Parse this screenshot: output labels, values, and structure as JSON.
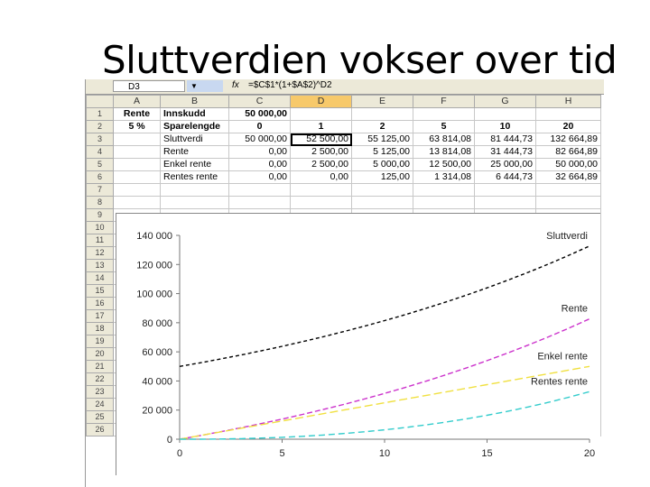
{
  "slide": {
    "title": "Sluttverdien vokser over tid"
  },
  "formula_bar": {
    "cell_ref": "D3",
    "dropdown": "▼",
    "fx": "fx",
    "formula": "=$C$1*(1+$A$2)^D2"
  },
  "columns": [
    "",
    "A",
    "B",
    "C",
    "D",
    "E",
    "F",
    "G",
    "H"
  ],
  "selected_column": "D",
  "rows": [
    {
      "n": "1",
      "cells": [
        "Rente",
        "Innskudd",
        "50 000,00",
        "",
        "",
        "",
        "",
        ""
      ]
    },
    {
      "n": "2",
      "cells": [
        "5 %",
        "Sparelengde",
        "0",
        "1",
        "2",
        "5",
        "10",
        "20"
      ]
    },
    {
      "n": "3",
      "cells": [
        "",
        "Sluttverdi",
        "50 000,00",
        "52 500,00",
        "55 125,00",
        "63 814,08",
        "81 444,73",
        "132 664,89"
      ]
    },
    {
      "n": "4",
      "cells": [
        "",
        "Rente",
        "0,00",
        "2 500,00",
        "5 125,00",
        "13 814,08",
        "31 444,73",
        "82 664,89"
      ]
    },
    {
      "n": "5",
      "cells": [
        "",
        "Enkel rente",
        "0,00",
        "2 500,00",
        "5 000,00",
        "12 500,00",
        "25 000,00",
        "50 000,00"
      ]
    },
    {
      "n": "6",
      "cells": [
        "",
        "Rentes rente",
        "0,00",
        "0,00",
        "125,00",
        "1 314,08",
        "6 444,73",
        "32 664,89"
      ]
    },
    {
      "n": "7",
      "cells": [
        "",
        "",
        "",
        "",
        "",
        "",
        "",
        ""
      ]
    },
    {
      "n": "8",
      "cells": [
        "",
        "",
        "",
        "",
        "",
        "",
        "",
        ""
      ]
    }
  ],
  "extra_row_numbers": [
    "9",
    "10",
    "11",
    "12",
    "13",
    "14",
    "15",
    "16",
    "17",
    "18",
    "19",
    "20",
    "21",
    "22",
    "23",
    "24",
    "25",
    "26"
  ],
  "chart_data": {
    "type": "line",
    "xlim": [
      0,
      20
    ],
    "ylim": [
      0,
      140000
    ],
    "x_ticks": [
      "0",
      "5",
      "10",
      "15",
      "20"
    ],
    "y_ticks": [
      "0",
      "20 000",
      "40 000",
      "60 000",
      "80 000",
      "100 000",
      "120 000",
      "140 000"
    ],
    "series": [
      {
        "name": "Sluttverdi",
        "color": "#000000",
        "x": [
          0,
          1,
          2,
          3,
          4,
          5,
          6,
          7,
          8,
          9,
          10,
          11,
          12,
          13,
          14,
          15,
          16,
          17,
          18,
          19,
          20
        ],
        "values": [
          50000,
          52500,
          55125,
          57881,
          60775,
          63814,
          67005,
          70355,
          73873,
          77566,
          81445,
          85517,
          89793,
          94283,
          98997,
          103946,
          109144,
          114601,
          120331,
          126348,
          132665
        ]
      },
      {
        "name": "Rente",
        "color": "#cc33cc",
        "x": [
          0,
          1,
          2,
          3,
          4,
          5,
          6,
          7,
          8,
          9,
          10,
          11,
          12,
          13,
          14,
          15,
          16,
          17,
          18,
          19,
          20
        ],
        "values": [
          0,
          2500,
          5125,
          7881,
          10775,
          13814,
          17005,
          20355,
          23873,
          27566,
          31445,
          35517,
          39793,
          44283,
          48997,
          53946,
          59144,
          64601,
          70331,
          76348,
          82665
        ]
      },
      {
        "name": "Enkel rente",
        "color": "#f0e040",
        "x": [
          0,
          5,
          10,
          15,
          20
        ],
        "values": [
          0,
          12500,
          25000,
          37500,
          50000
        ]
      },
      {
        "name": "Rentes rente",
        "color": "#33cccc",
        "x": [
          0,
          1,
          2,
          3,
          4,
          5,
          6,
          7,
          8,
          9,
          10,
          11,
          12,
          13,
          14,
          15,
          16,
          17,
          18,
          19,
          20
        ],
        "values": [
          0,
          0,
          125,
          381,
          775,
          1314,
          2005,
          2855,
          3873,
          5066,
          6445,
          8017,
          9793,
          11783,
          13997,
          16446,
          19144,
          22101,
          25331,
          28848,
          32665
        ]
      }
    ],
    "series_labels_shown": [
      "Sluttverdi",
      "Rente",
      "Enkel rente",
      "Rentes rente"
    ]
  }
}
